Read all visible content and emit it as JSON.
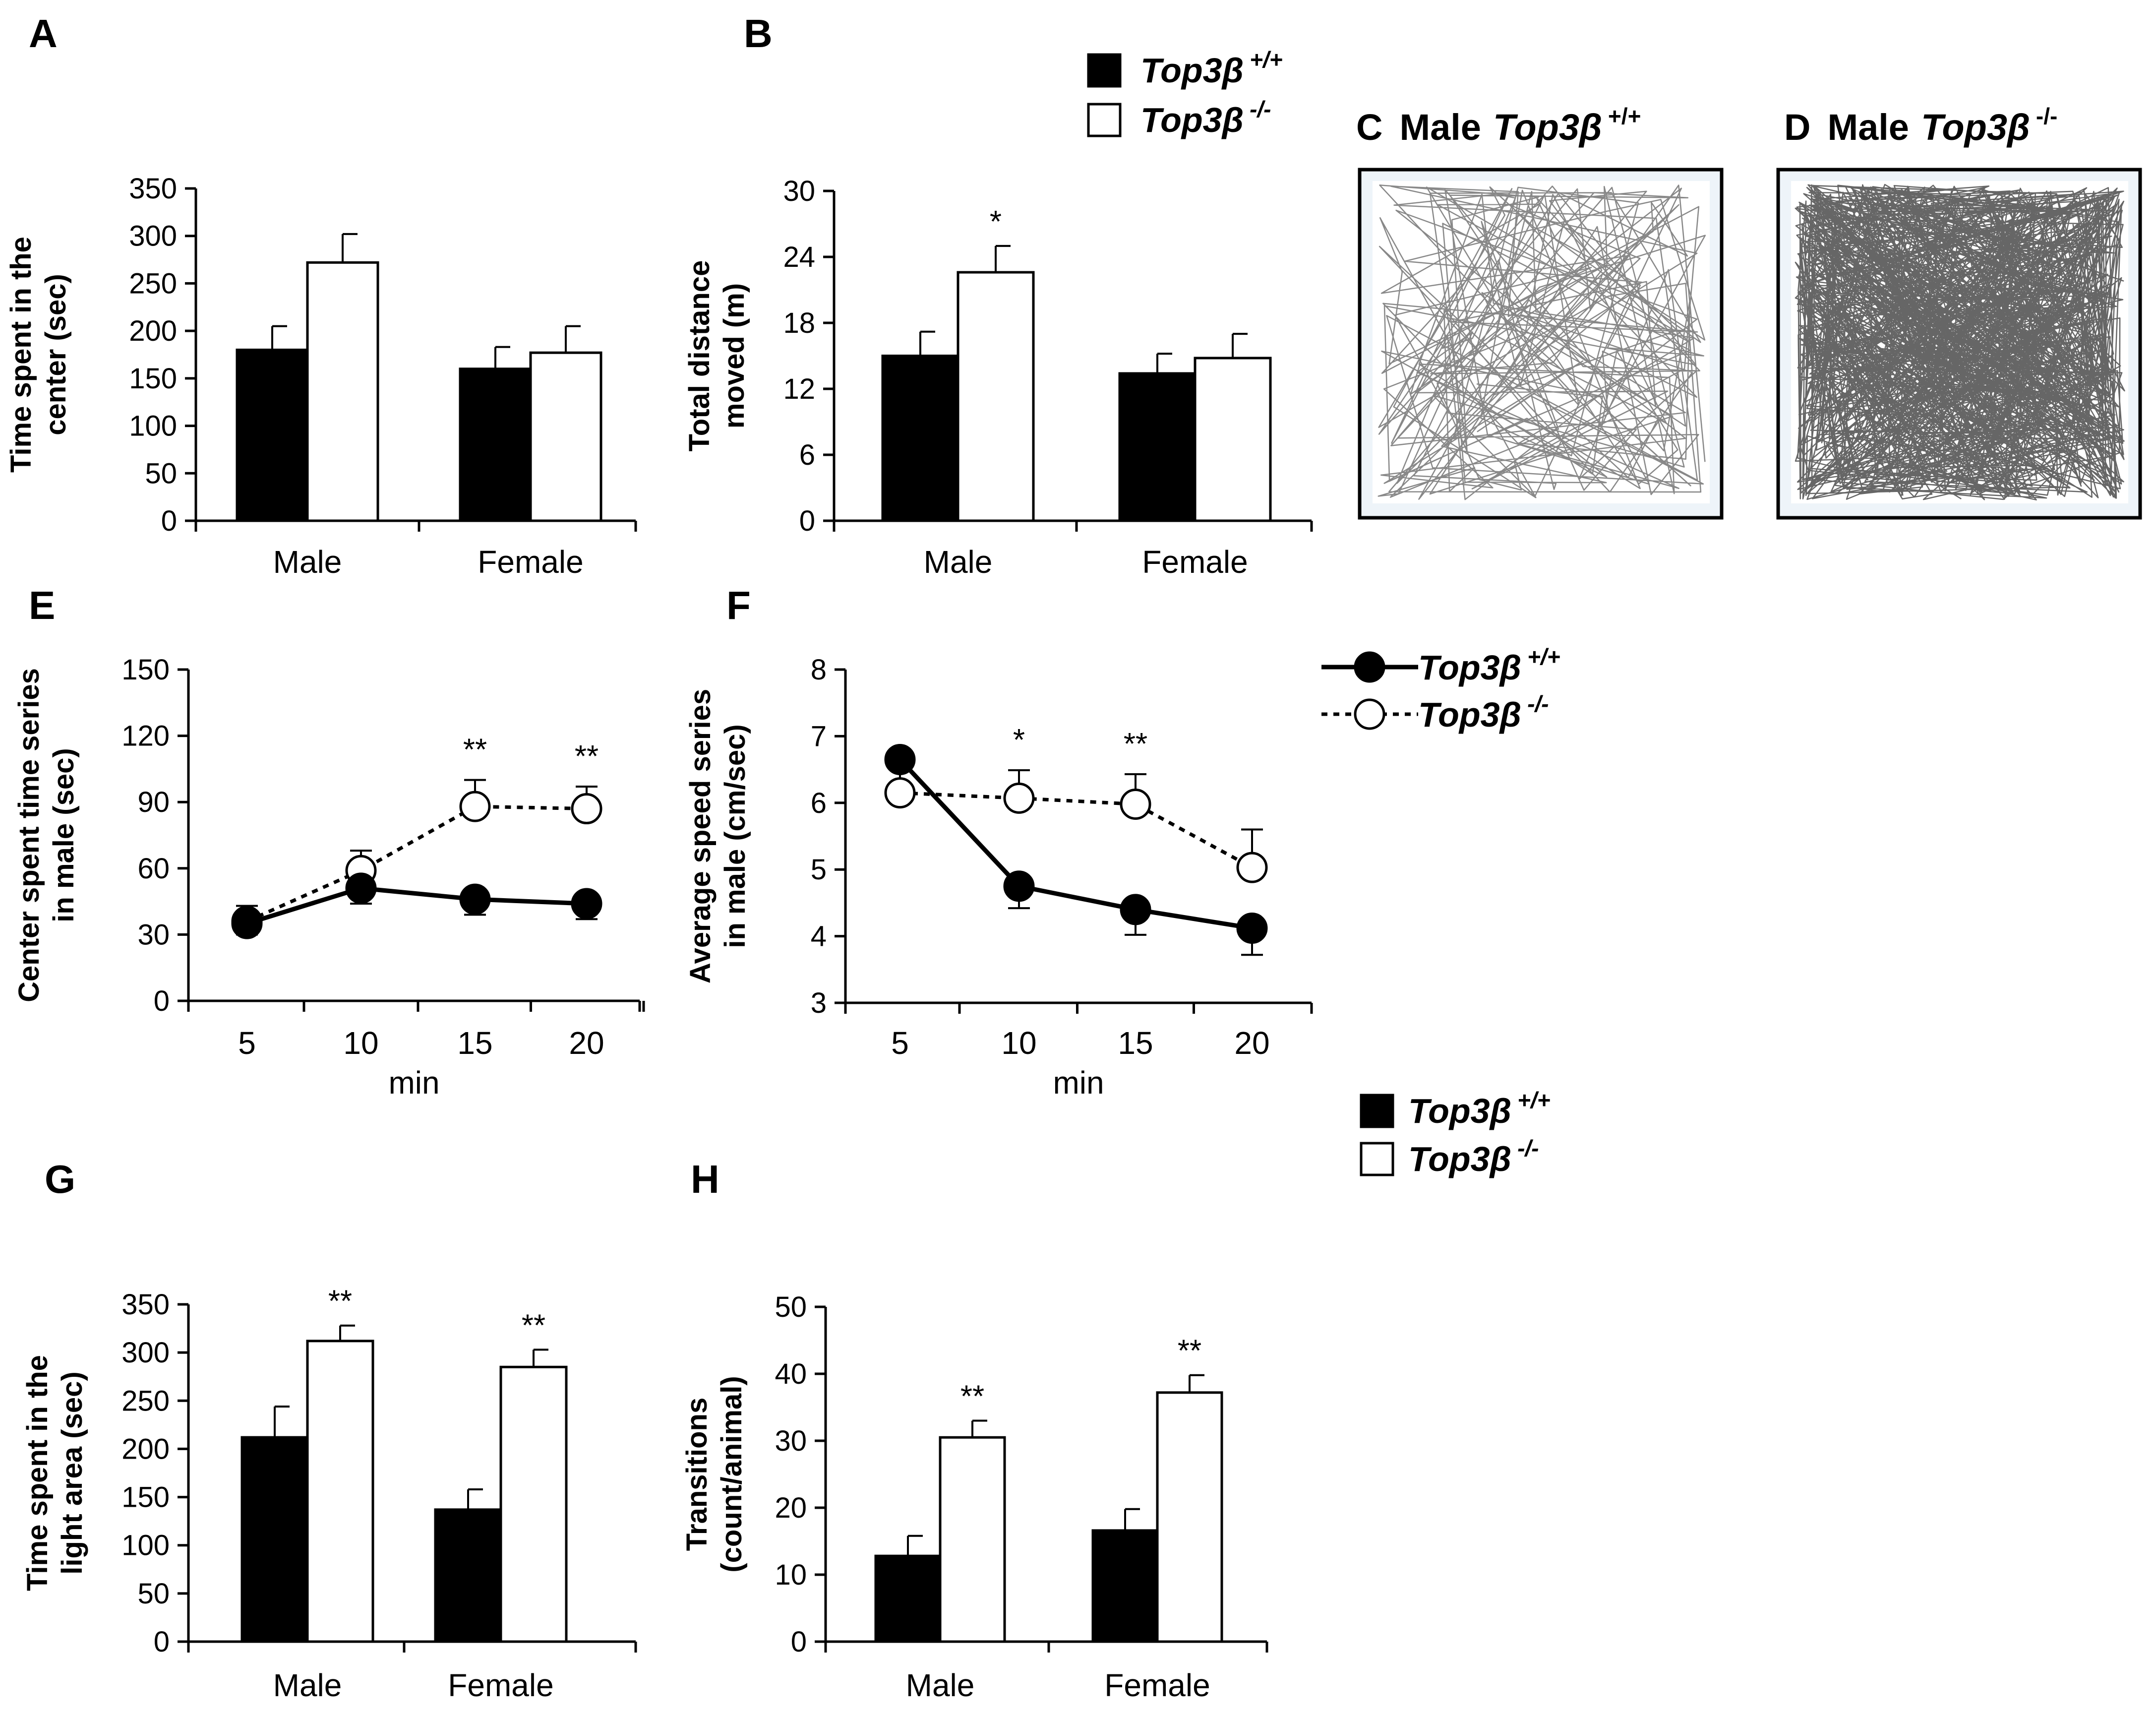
{
  "colors": {
    "wt": "#000000",
    "ko": "#ffffff",
    "stroke": "#000000",
    "arena_bg": "#eef4f9"
  },
  "legends": {
    "top": [
      {
        "key": "wt",
        "base": "Top3β",
        "sup": "+/+"
      },
      {
        "key": "ko",
        "base": "Top3β",
        "sup": "-/-"
      }
    ],
    "line": [
      {
        "key": "wt",
        "base": "Top3β",
        "sup": "+/+"
      },
      {
        "key": "ko",
        "base": "Top3β",
        "sup": "-/-"
      }
    ],
    "bottom": [
      {
        "key": "wt",
        "base": "Top3β",
        "sup": "+/+"
      },
      {
        "key": "ko",
        "base": "Top3β",
        "sup": "-/-"
      }
    ]
  },
  "panels": {
    "C": {
      "letter": "C",
      "sex": "Male",
      "base": "Top3β",
      "sup": "+/+"
    },
    "D": {
      "letter": "D",
      "sex": "Male",
      "base": "Top3β",
      "sup": "-/-"
    }
  },
  "chart_data": [
    {
      "panel": "A",
      "type": "bar",
      "categories": [
        "Male",
        "Female"
      ],
      "series": [
        {
          "name": "Top3β +/+",
          "values": [
            180,
            160
          ],
          "errors": [
            25,
            23
          ]
        },
        {
          "name": "Top3β -/-",
          "values": [
            272,
            177
          ],
          "errors": [
            30,
            28
          ]
        }
      ],
      "ylabel_lines": [
        "Time spent in the",
        "center (sec)"
      ],
      "ylim": [
        0,
        350
      ],
      "yticks": [
        0,
        50,
        100,
        150,
        200,
        250,
        300,
        350
      ],
      "significance": [
        [],
        []
      ]
    },
    {
      "panel": "B",
      "type": "bar",
      "categories": [
        "Male",
        "Female"
      ],
      "series": [
        {
          "name": "Top3β +/+",
          "values": [
            15,
            13.4
          ],
          "errors": [
            2.2,
            1.8
          ]
        },
        {
          "name": "Top3β -/-",
          "values": [
            22.6,
            14.8
          ],
          "errors": [
            2.4,
            2.2
          ]
        }
      ],
      "ylabel_lines": [
        "Total distance",
        "moved (m)"
      ],
      "ylim": [
        0,
        30
      ],
      "yticks": [
        0,
        6,
        12,
        18,
        24,
        30
      ],
      "significance": [
        [
          "",
          "*"
        ],
        [
          "",
          ""
        ]
      ]
    },
    {
      "panel": "E",
      "type": "line",
      "x": [
        5,
        10,
        15,
        20
      ],
      "series": [
        {
          "name": "Top3β +/+",
          "values": [
            35,
            51,
            46,
            44
          ],
          "errors": [
            5,
            7,
            7,
            7
          ]
        },
        {
          "name": "Top3β -/-",
          "values": [
            36,
            59,
            88,
            87
          ],
          "errors": [
            7,
            9,
            12,
            10
          ]
        }
      ],
      "xlabel": "min",
      "ylabel_lines": [
        "Center spent time series",
        "in male (sec)"
      ],
      "ylim": [
        0,
        150
      ],
      "yticks": [
        0,
        30,
        60,
        90,
        120,
        150
      ],
      "significance": [
        "",
        "",
        "**",
        "**"
      ]
    },
    {
      "panel": "F",
      "type": "line",
      "x": [
        5,
        10,
        15,
        20
      ],
      "series": [
        {
          "name": "Top3β +/+",
          "values": [
            6.65,
            4.75,
            4.4,
            4.12
          ],
          "errors": [
            0.53,
            0.33,
            0.38,
            0.4
          ]
        },
        {
          "name": "Top3β -/-",
          "values": [
            6.15,
            6.07,
            5.98,
            5.03
          ],
          "errors": [
            0.55,
            0.42,
            0.45,
            0.57
          ]
        }
      ],
      "xlabel": "min",
      "ylabel_lines": [
        "Average speed series",
        "in male (cm/sec)"
      ],
      "ylim": [
        3,
        8
      ],
      "yticks": [
        3,
        4,
        5,
        6,
        7,
        8
      ],
      "significance": [
        "",
        "*",
        "**",
        ""
      ]
    },
    {
      "panel": "G",
      "type": "bar",
      "categories": [
        "Male",
        "Female"
      ],
      "series": [
        {
          "name": "Top3β +/+",
          "values": [
            212,
            137
          ],
          "errors": [
            32,
            21
          ]
        },
        {
          "name": "Top3β -/-",
          "values": [
            312,
            285
          ],
          "errors": [
            16,
            18
          ]
        }
      ],
      "ylabel_lines": [
        "Time spent in the",
        "light area (sec)"
      ],
      "ylim": [
        0,
        350
      ],
      "yticks": [
        0,
        50,
        100,
        150,
        200,
        250,
        300,
        350
      ],
      "significance": [
        [
          "",
          "**"
        ],
        [
          "",
          "**"
        ]
      ]
    },
    {
      "panel": "H",
      "type": "bar",
      "categories": [
        "Male",
        "Female"
      ],
      "series": [
        {
          "name": "Top3β +/+",
          "values": [
            12.8,
            16.6
          ],
          "errors": [
            3,
            3.2
          ]
        },
        {
          "name": "Top3β -/-",
          "values": [
            30.5,
            37.2
          ],
          "errors": [
            2.5,
            2.6
          ]
        }
      ],
      "ylabel_lines": [
        "Transitions",
        "(count/animal)"
      ],
      "ylim": [
        0,
        50
      ],
      "yticks": [
        0,
        10,
        20,
        30,
        40,
        50
      ],
      "significance": [
        [
          "",
          "**"
        ],
        [
          "",
          "**"
        ]
      ]
    }
  ]
}
